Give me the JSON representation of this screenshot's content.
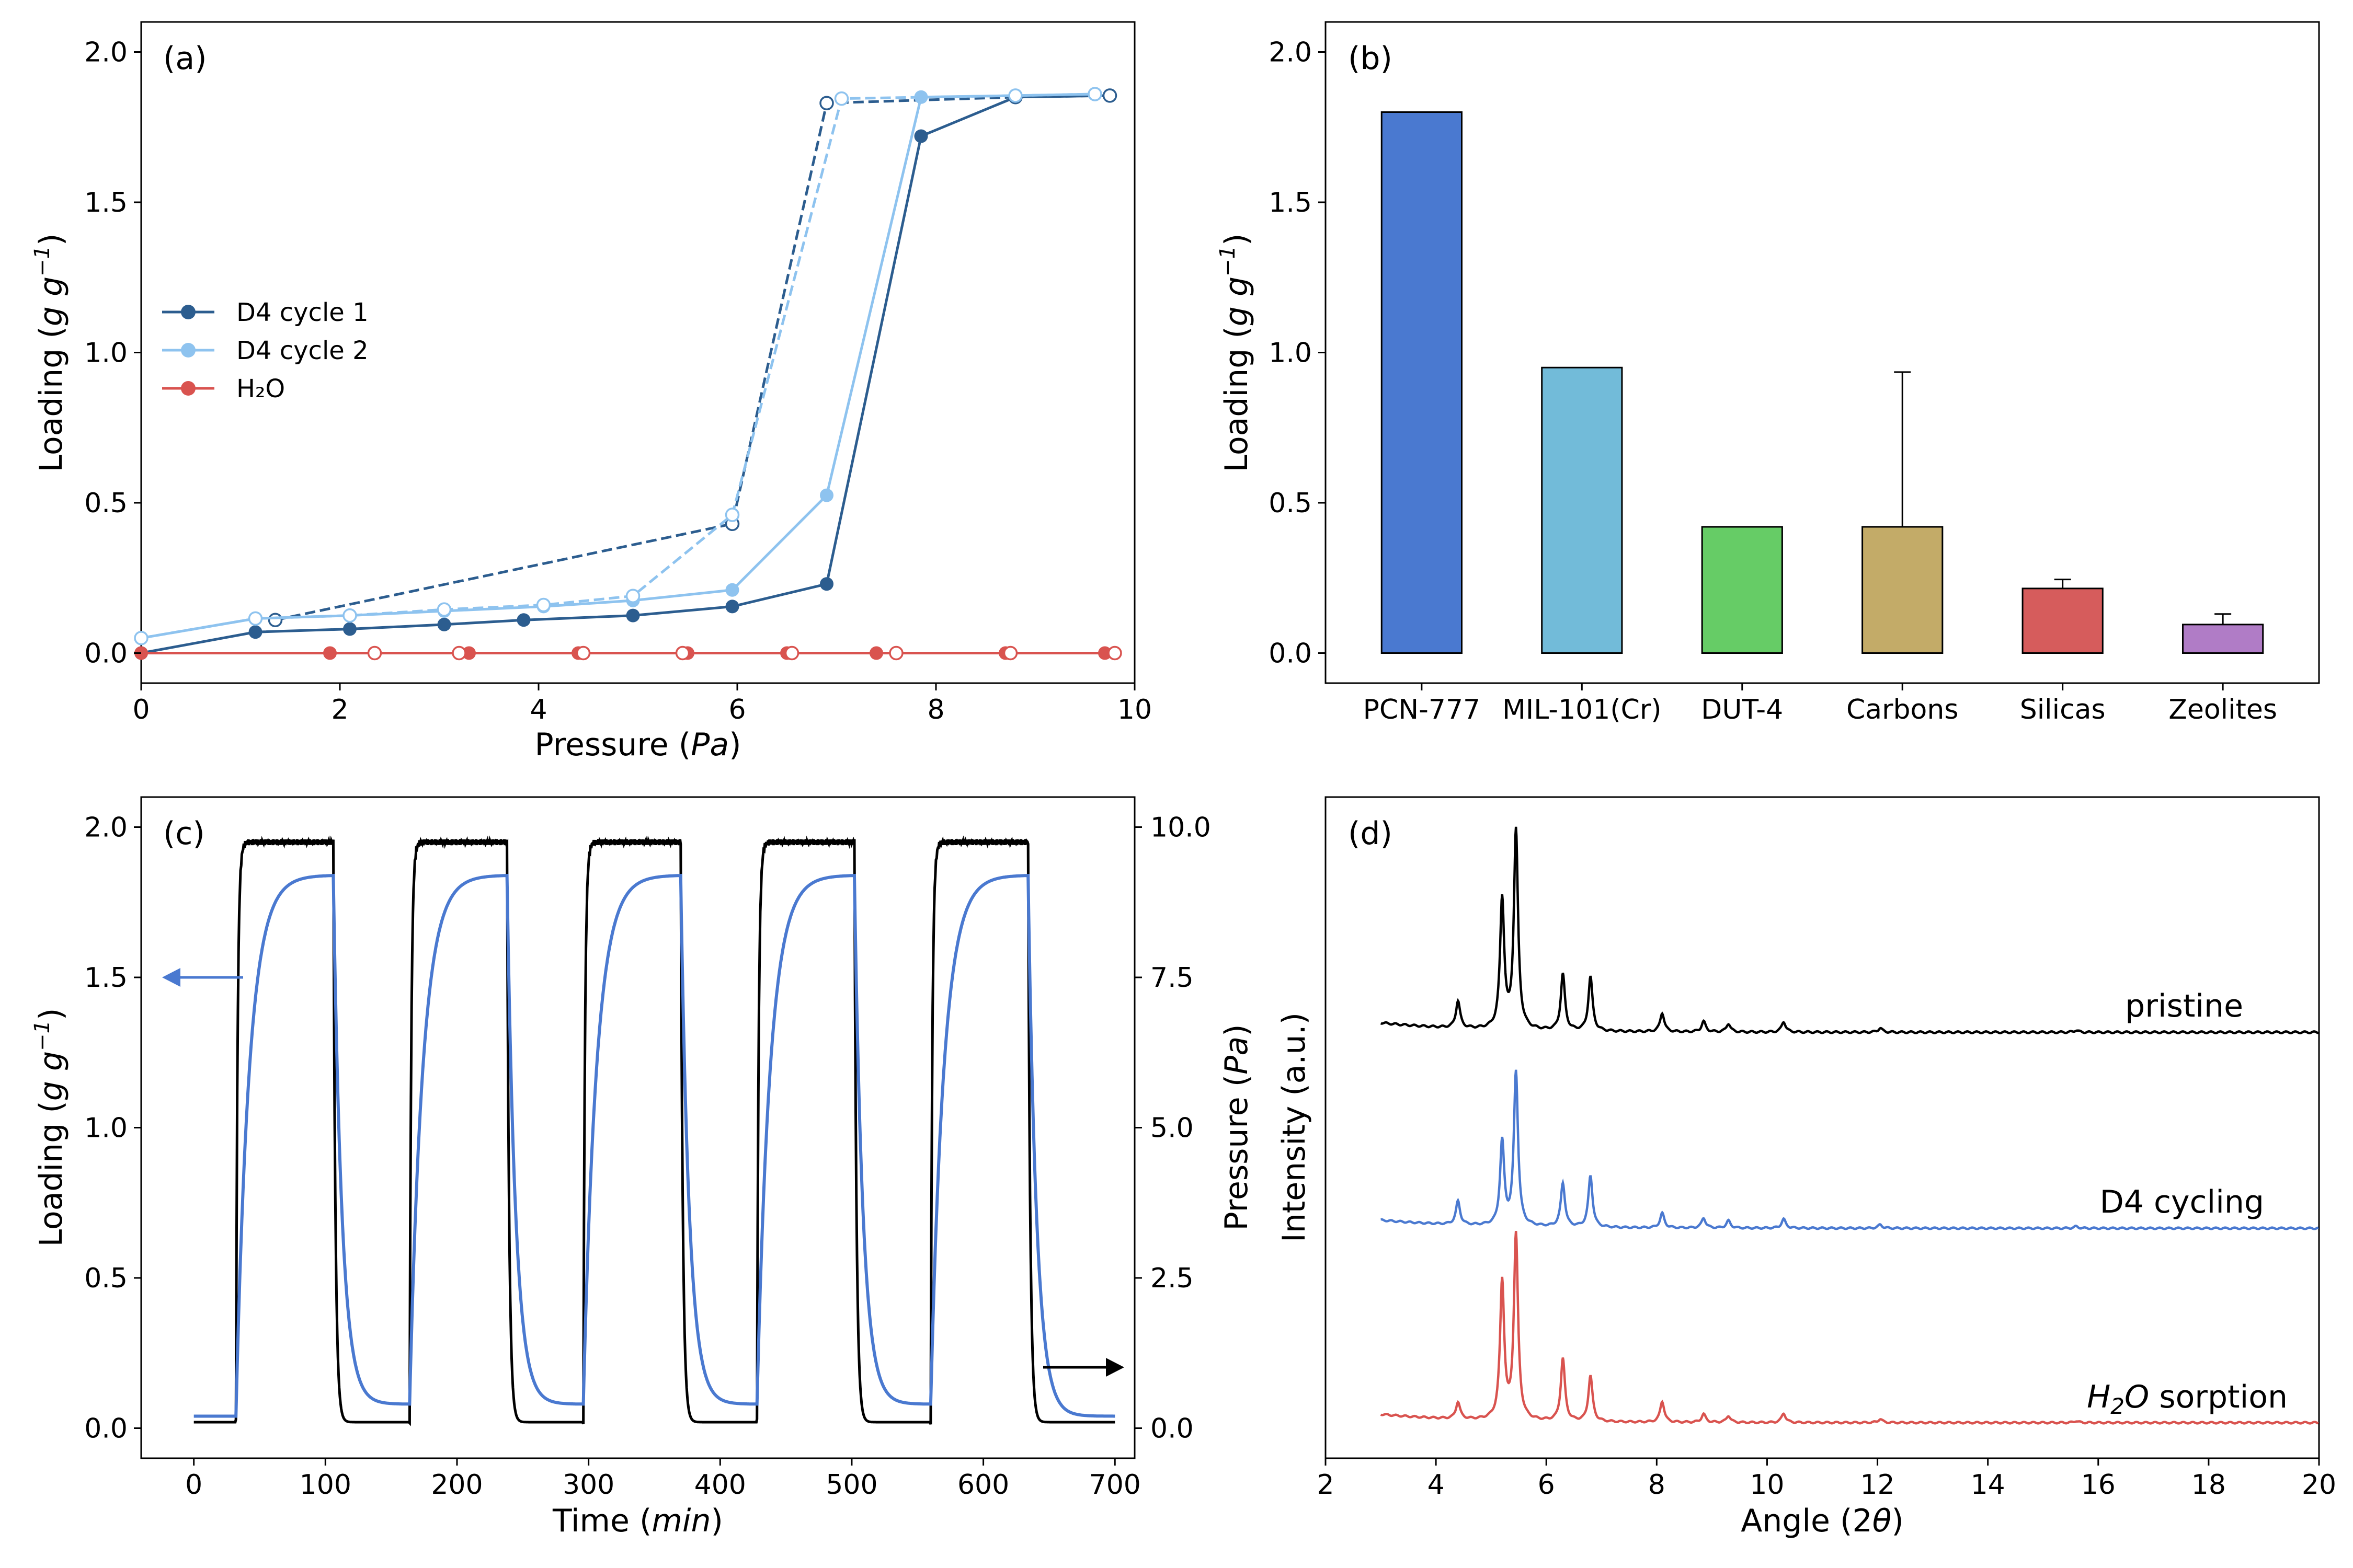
{
  "chart_data": [
    {
      "panel": "(a)",
      "type": "line",
      "xlabel": "Pressure (Pa)",
      "ylabel": "Loading (g g⁻¹)",
      "xlim": [
        0,
        10
      ],
      "ylim": [
        -0.1,
        2.1
      ],
      "xticks": [
        "0",
        "2",
        "4",
        "6",
        "8",
        "10"
      ],
      "yticks": [
        "0.0",
        "0.5",
        "1.0",
        "1.5",
        "2.0"
      ],
      "legend": [
        "D4 cycle 1",
        "D4 cycle 2",
        "H₂O"
      ],
      "series": [
        {
          "name": "D4 cycle 1",
          "color": "#2c5d8f",
          "style": "solid",
          "marker": "filled",
          "x": [
            0,
            1.15,
            2.1,
            3.05,
            3.85,
            4.95,
            5.95,
            6.9,
            7.85,
            8.8,
            9.75
          ],
          "y": [
            0.0,
            0.07,
            0.08,
            0.095,
            0.11,
            0.125,
            0.155,
            0.23,
            1.72,
            1.85,
            1.855
          ]
        },
        {
          "name": "D4 cycle 1 desorption",
          "color": "#2c5d8f",
          "style": "dashed",
          "marker": "open",
          "x": [
            1.35,
            5.95,
            6.9,
            8.8,
            9.75
          ],
          "y": [
            0.11,
            0.43,
            1.83,
            1.85,
            1.855
          ]
        },
        {
          "name": "D4 cycle 2",
          "color": "#8ec3ef",
          "style": "solid",
          "marker": "filled",
          "x": [
            0,
            1.15,
            2.1,
            3.05,
            4.05,
            4.95,
            5.95,
            6.9,
            7.85,
            8.8,
            9.6
          ],
          "y": [
            0.05,
            0.115,
            0.125,
            0.14,
            0.155,
            0.175,
            0.21,
            0.525,
            1.85,
            1.855,
            1.86
          ]
        },
        {
          "name": "D4 cycle 2 desorption",
          "color": "#8ec3ef",
          "style": "dashed",
          "marker": "open",
          "x": [
            0,
            1.15,
            2.1,
            3.05,
            4.05,
            4.95,
            5.95,
            7.05,
            8.8,
            9.6
          ],
          "y": [
            0.05,
            0.115,
            0.125,
            0.145,
            0.16,
            0.19,
            0.46,
            1.845,
            1.855,
            1.86
          ]
        },
        {
          "name": "H₂O",
          "color": "#d9534f",
          "style": "solid",
          "marker": "filled",
          "x": [
            0,
            1.9,
            3.3,
            4.4,
            5.5,
            6.5,
            7.4,
            8.7,
            9.7
          ],
          "y": [
            0,
            0,
            0,
            0,
            0,
            0,
            0,
            0,
            0
          ]
        },
        {
          "name": "H₂O desorption",
          "color": "#d9534f",
          "style": "solid",
          "marker": "open",
          "x": [
            2.35,
            3.2,
            4.45,
            5.45,
            6.55,
            7.6,
            8.75,
            9.8
          ],
          "y": [
            0,
            0,
            0,
            0,
            0,
            0,
            0,
            0
          ]
        }
      ]
    },
    {
      "panel": "(b)",
      "type": "bar",
      "ylabel": "Loading (g g⁻¹)",
      "ylim": [
        -0.1,
        2.1
      ],
      "yticks": [
        "0.0",
        "0.5",
        "1.0",
        "1.5",
        "2.0"
      ],
      "categories": [
        "PCN-777",
        "MIL-101(Cr)",
        "DUT-4",
        "Carbons",
        "Silicas",
        "Zeolites"
      ],
      "values": [
        1.8,
        0.95,
        0.42,
        0.42,
        0.215,
        0.095
      ],
      "error_upper": [
        0,
        0,
        0,
        0.935,
        0.245,
        0.13
      ],
      "colors": [
        "#4a79d0",
        "#72bbd9",
        "#66cc66",
        "#c3ab68",
        "#d65c5c",
        "#b07cc6"
      ]
    },
    {
      "panel": "(c)",
      "type": "line",
      "xlabel": "Time (min)",
      "ylabel": "Loading (g g⁻¹)",
      "ylabel_right": "Pressure (Pa)",
      "xlim": [
        -40,
        715
      ],
      "ylim": [
        -0.1,
        2.1
      ],
      "ylim_right": [
        -0.5,
        10.5
      ],
      "xticks": [
        "0",
        "100",
        "200",
        "300",
        "400",
        "500",
        "600",
        "700"
      ],
      "yticks": [
        "0.0",
        "0.5",
        "1.0",
        "1.5",
        "2.0"
      ],
      "yticks_right": [
        "0.0",
        "2.5",
        "5.0",
        "7.5",
        "10.0"
      ],
      "cycles": [
        {
          "start": 32,
          "end": 106
        },
        {
          "start": 164,
          "end": 238
        },
        {
          "start": 296,
          "end": 370
        },
        {
          "start": 428,
          "end": 502
        },
        {
          "start": 560,
          "end": 634
        }
      ],
      "series": [
        {
          "name": "Loading",
          "axis": "left",
          "color": "#4a79d0",
          "plateau": 1.84,
          "baseline": 0.08,
          "initial": 0.04
        },
        {
          "name": "Pressure",
          "axis": "right",
          "color": "#000000",
          "plateau": 9.75,
          "baseline": 0.1
        }
      ]
    },
    {
      "panel": "(d)",
      "type": "line",
      "xlabel": "Angle (2θ)",
      "ylabel": "Intensity (a.u.)",
      "xlim": [
        2,
        20
      ],
      "xticks": [
        "2",
        "4",
        "6",
        "8",
        "10",
        "12",
        "14",
        "16",
        "18",
        "20"
      ],
      "series": [
        {
          "name": "pristine",
          "color": "#000000"
        },
        {
          "name": "D4 cycling",
          "color": "#4a79d0"
        },
        {
          "name": "H₂O sorption",
          "color": "#d9534f"
        }
      ],
      "peaks": [
        {
          "pos": 4.4,
          "h": 0.13
        },
        {
          "pos": 5.2,
          "h": 0.62
        },
        {
          "pos": 5.45,
          "h": 0.95
        },
        {
          "pos": 6.3,
          "h": 0.27
        },
        {
          "pos": 6.8,
          "h": 0.26
        },
        {
          "pos": 8.1,
          "h": 0.09
        },
        {
          "pos": 8.85,
          "h": 0.05
        },
        {
          "pos": 9.3,
          "h": 0.04
        },
        {
          "pos": 10.3,
          "h": 0.05
        },
        {
          "pos": 12.05,
          "h": 0.02
        },
        {
          "pos": 15.6,
          "h": 0.01
        }
      ]
    }
  ]
}
